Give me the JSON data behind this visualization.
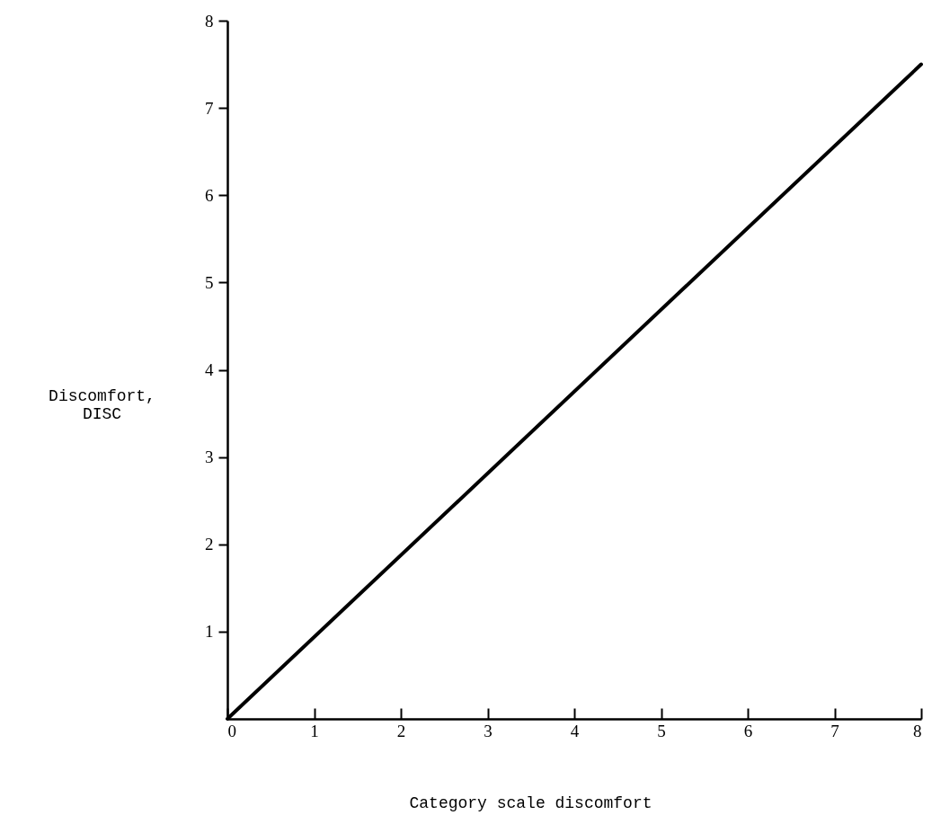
{
  "chart_data": {
    "type": "line",
    "xlabel": "Category scale discomfort",
    "ylabel": "Discomfort,\nDISC",
    "x": [
      0,
      8
    ],
    "series": [
      {
        "color": "#000000",
        "values": [
          0,
          7.5
        ]
      }
    ],
    "xlim": [
      0,
      8
    ],
    "ylim": [
      0,
      8
    ],
    "xticks": [
      0,
      1,
      2,
      3,
      4,
      5,
      6,
      7,
      8
    ],
    "yticks": [
      1,
      2,
      3,
      4,
      5,
      6,
      7,
      8
    ],
    "grid": false,
    "marker": "none",
    "line_style": "solid"
  }
}
